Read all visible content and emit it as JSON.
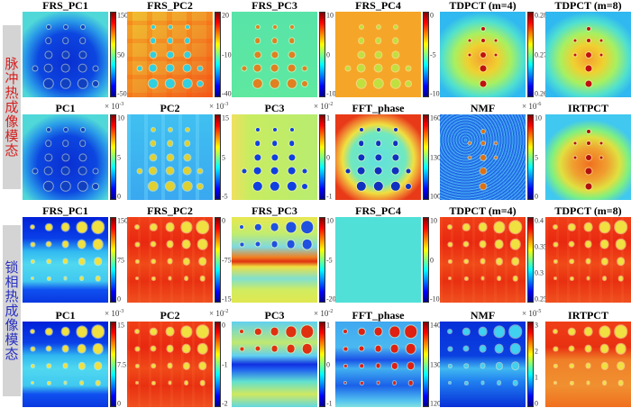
{
  "side_labels": [
    {
      "text": "脉冲热成像模态",
      "color": "#d42020"
    },
    {
      "text": "锁相热成像模态",
      "color": "#2830c0"
    }
  ],
  "rows": [
    {
      "panels": [
        {
          "title": "FRS_PC1",
          "exponent": "",
          "ticks": [
            "150",
            "50",
            "-50"
          ],
          "style": "p-radial-blue",
          "dots": "pulse",
          "dot_color": "#1040c0"
        },
        {
          "title": "FRS_PC2",
          "exponent": "",
          "ticks": [
            "20",
            "-10",
            "-40"
          ],
          "style": "p-orange-tex",
          "dots": "pulse",
          "dot_color": "#30d0e0"
        },
        {
          "title": "FRS_PC3",
          "exponent": "",
          "ticks": [
            "10",
            "0",
            "-10"
          ],
          "style": "p-green",
          "dots": "pulse",
          "dot_color": "#e08020"
        },
        {
          "title": "FRS_PC4",
          "exponent": "",
          "ticks": [
            "0",
            "-5",
            "-10"
          ],
          "style": "p-orange",
          "dots": "pulse",
          "dot_color": "#c0e040"
        },
        {
          "title": "TDPCT (m=4)",
          "exponent": "",
          "ticks": [
            "0.28",
            "0.27",
            "0.26"
          ],
          "style": "p-radial-warm",
          "dots": "center",
          "dot_color": "#c01010"
        },
        {
          "title": "TDPCT (m=8)",
          "exponent": "",
          "ticks": [
            "0.28",
            "0.27",
            "0.26"
          ],
          "style": "p-radial-warm",
          "dots": "center",
          "dot_color": "#c01010"
        }
      ]
    },
    {
      "panels": [
        {
          "title": "PC1",
          "exponent": "-3",
          "ticks": [
            "10",
            "5",
            "0"
          ],
          "style": "p-radial-blue",
          "dots": "pulse",
          "dot_color": "#1040c0"
        },
        {
          "title": "PC2",
          "exponent": "-3",
          "ticks": [
            "15",
            "5",
            "-5"
          ],
          "style": "p-lightblue",
          "dots": "pulse",
          "dot_color": "#e0d030"
        },
        {
          "title": "PC3",
          "exponent": "-2",
          "ticks": [
            "1",
            "0",
            "-1"
          ],
          "style": "p-yellowgreen",
          "dots": "pulse",
          "dot_color": "#1040e0"
        },
        {
          "title": "FFT_phase",
          "exponent": "",
          "ticks": [
            "160",
            "130",
            "100"
          ],
          "style": "p-radial-cool",
          "dots": "pulse",
          "dot_color": "#1030c0"
        },
        {
          "title": "NMF",
          "exponent": "-6",
          "ticks": [
            "10",
            "5",
            "0"
          ],
          "style": "p-noise-blue",
          "dots": "center",
          "dot_color": "#e07010"
        },
        {
          "title": "IRTPCT",
          "exponent": "",
          "ticks": [],
          "style": "p-radial-hot",
          "dots": "center",
          "dot_color": "#b01010"
        }
      ]
    },
    {
      "panels": [
        {
          "title": "FRS_PC1",
          "exponent": "",
          "ticks": [
            "150",
            "75",
            "0"
          ],
          "style": "p-band-blue",
          "dots": "lockin",
          "dot_color": "#f0e040"
        },
        {
          "title": "FRS_PC2",
          "exponent": "",
          "ticks": [
            "0",
            "-75",
            "-150"
          ],
          "style": "p-red",
          "dots": "lockin",
          "dot_color": "#f0e040"
        },
        {
          "title": "FRS_PC3",
          "exponent": "",
          "ticks": [
            "10",
            "-5",
            "-20"
          ],
          "style": "p-yellow-redband",
          "dots": "lockin-top",
          "dot_color": "#2050e0"
        },
        {
          "title": "FRS_PC4",
          "exponent": "",
          "ticks": [
            "10",
            "0",
            "-10"
          ],
          "style": "p-cyan",
          "dots": "none",
          "dot_color": "#2040c0"
        },
        {
          "title": "TDPCT (m=4)",
          "exponent": "",
          "ticks": [
            "0.4",
            "0.35",
            "0.3",
            "0.25"
          ],
          "style": "p-red",
          "dots": "lockin",
          "dot_color": "#f0e040"
        },
        {
          "title": "TDPCT (m=8)",
          "exponent": "",
          "ticks": [],
          "style": "p-red",
          "dots": "lockin",
          "dot_color": "#f0e040"
        }
      ]
    },
    {
      "panels": [
        {
          "title": "PC1",
          "exponent": "-3",
          "ticks": [
            "15",
            "7.5",
            "0"
          ],
          "style": "p-band-blue",
          "dots": "lockin",
          "dot_color": "#f0e040"
        },
        {
          "title": "PC2",
          "exponent": "-2",
          "ticks": [
            "0",
            "-1",
            "-2"
          ],
          "style": "p-red",
          "dots": "lockin",
          "dot_color": "#f0e040"
        },
        {
          "title": "PC3",
          "exponent": "-2",
          "ticks": [
            "1",
            "0",
            "-1"
          ],
          "style": "p-cyan-blueband",
          "dots": "lockin-top",
          "dot_color": "#e03010"
        },
        {
          "title": "FFT_phase",
          "exponent": "",
          "ticks": [
            "140",
            "130",
            "120"
          ],
          "style": "p-blue-soft",
          "dots": "lockin",
          "dot_color": "#e02010"
        },
        {
          "title": "NMF",
          "exponent": "-5",
          "ticks": [
            "3",
            "2",
            "1",
            "0"
          ],
          "style": "p-deepblue",
          "dots": "lockin",
          "dot_color": "#40d0f0"
        },
        {
          "title": "IRTPCT",
          "exponent": "",
          "ticks": [],
          "style": "p-red-orange",
          "dots": "lockin",
          "dot_color": "#f0e040"
        }
      ]
    }
  ]
}
